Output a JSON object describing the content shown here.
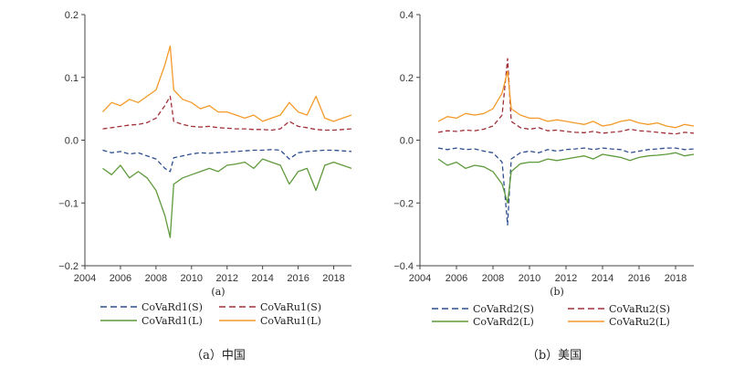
{
  "captions": {
    "left": "（a）中国",
    "right": "（b）美国"
  },
  "chart_data": [
    {
      "type": "line",
      "panel_label": "(a)",
      "xlim": [
        2004,
        2019
      ],
      "ylim": [
        -0.2,
        0.2
      ],
      "x_ticks": [
        2004,
        2006,
        2008,
        2010,
        2012,
        2014,
        2016,
        2018
      ],
      "x_tick_labels": [
        "2004",
        "2006",
        "2008",
        "2010",
        "2012",
        "2014",
        "2016",
        "2018"
      ],
      "y_ticks": [
        -0.2,
        -0.1,
        0.0,
        0.1,
        0.2
      ],
      "y_tick_labels": [
        "−0.2",
        "−0.1",
        "0.0",
        "0.1",
        "0.2"
      ],
      "legend_position": "bottom",
      "series": [
        {
          "name": "CoVaRd1(S)",
          "color": "#2f4f8f",
          "dash": true,
          "x": [
            2005,
            2005.5,
            2006,
            2006.5,
            2007,
            2007.5,
            2008,
            2008.5,
            2008.8,
            2009,
            2009.5,
            2010,
            2010.5,
            2011,
            2011.5,
            2012,
            2012.5,
            2013,
            2013.5,
            2014,
            2014.5,
            2015,
            2015.5,
            2016,
            2016.5,
            2017,
            2017.5,
            2018,
            2018.5,
            2019
          ],
          "y": [
            -0.016,
            -0.02,
            -0.018,
            -0.022,
            -0.02,
            -0.025,
            -0.03,
            -0.045,
            -0.05,
            -0.028,
            -0.025,
            -0.022,
            -0.02,
            -0.021,
            -0.02,
            -0.019,
            -0.018,
            -0.017,
            -0.016,
            -0.016,
            -0.015,
            -0.016,
            -0.03,
            -0.02,
            -0.018,
            -0.017,
            -0.016,
            -0.016,
            -0.017,
            -0.018
          ]
        },
        {
          "name": "CoVaRu1(S)",
          "color": "#a0303a",
          "dash": true,
          "x": [
            2005,
            2005.5,
            2006,
            2006.5,
            2007,
            2007.5,
            2008,
            2008.5,
            2008.8,
            2009,
            2009.5,
            2010,
            2010.5,
            2011,
            2011.5,
            2012,
            2012.5,
            2013,
            2013.5,
            2014,
            2014.5,
            2015,
            2015.5,
            2016,
            2016.5,
            2017,
            2017.5,
            2018,
            2018.5,
            2019
          ],
          "y": [
            0.018,
            0.02,
            0.022,
            0.024,
            0.025,
            0.028,
            0.035,
            0.055,
            0.07,
            0.03,
            0.025,
            0.022,
            0.021,
            0.022,
            0.02,
            0.019,
            0.018,
            0.018,
            0.017,
            0.017,
            0.016,
            0.018,
            0.03,
            0.022,
            0.02,
            0.017,
            0.016,
            0.016,
            0.017,
            0.018
          ]
        },
        {
          "name": "CoVaRd1(L)",
          "color": "#5f9a3c",
          "dash": false,
          "x": [
            2005,
            2005.5,
            2006,
            2006.5,
            2007,
            2007.5,
            2008,
            2008.5,
            2008.8,
            2009,
            2009.5,
            2010,
            2010.5,
            2011,
            2011.5,
            2012,
            2012.5,
            2013,
            2013.5,
            2014,
            2014.5,
            2015,
            2015.5,
            2016,
            2016.5,
            2017,
            2017.5,
            2018,
            2018.5,
            2019
          ],
          "y": [
            -0.045,
            -0.055,
            -0.04,
            -0.06,
            -0.05,
            -0.06,
            -0.08,
            -0.12,
            -0.155,
            -0.07,
            -0.06,
            -0.055,
            -0.05,
            -0.045,
            -0.05,
            -0.04,
            -0.038,
            -0.035,
            -0.045,
            -0.03,
            -0.035,
            -0.04,
            -0.07,
            -0.05,
            -0.045,
            -0.08,
            -0.04,
            -0.035,
            -0.04,
            -0.045
          ]
        },
        {
          "name": "CoVaRu1(L)",
          "color": "#f39a2a",
          "dash": false,
          "x": [
            2005,
            2005.5,
            2006,
            2006.5,
            2007,
            2007.5,
            2008,
            2008.5,
            2008.8,
            2009,
            2009.5,
            2010,
            2010.5,
            2011,
            2011.5,
            2012,
            2012.5,
            2013,
            2013.5,
            2014,
            2014.5,
            2015,
            2015.5,
            2016,
            2016.5,
            2017,
            2017.5,
            2018,
            2018.5,
            2019
          ],
          "y": [
            0.045,
            0.06,
            0.055,
            0.065,
            0.06,
            0.07,
            0.08,
            0.12,
            0.15,
            0.08,
            0.065,
            0.06,
            0.05,
            0.055,
            0.045,
            0.045,
            0.04,
            0.035,
            0.04,
            0.03,
            0.035,
            0.04,
            0.06,
            0.045,
            0.04,
            0.07,
            0.035,
            0.03,
            0.035,
            0.04
          ]
        }
      ]
    },
    {
      "type": "line",
      "panel_label": "(b)",
      "xlim": [
        2004,
        2019
      ],
      "ylim": [
        -0.4,
        0.4
      ],
      "x_ticks": [
        2004,
        2006,
        2008,
        2010,
        2012,
        2014,
        2016,
        2018
      ],
      "x_tick_labels": [
        "2004",
        "2006",
        "2008",
        "2010",
        "2012",
        "2014",
        "2016",
        "2018"
      ],
      "y_ticks": [
        -0.4,
        -0.2,
        0.0,
        0.2,
        0.4
      ],
      "y_tick_labels": [
        "−0.4",
        "−0.2",
        "0.0",
        "0.2",
        "0.4"
      ],
      "legend_position": "bottom",
      "series": [
        {
          "name": "CoVaRd2(S)",
          "color": "#2f4f8f",
          "dash": true,
          "x": [
            2005,
            2005.5,
            2006,
            2006.5,
            2007,
            2007.5,
            2008,
            2008.5,
            2008.8,
            2009,
            2009.5,
            2010,
            2010.5,
            2011,
            2011.5,
            2012,
            2012.5,
            2013,
            2013.5,
            2014,
            2014.5,
            2015,
            2015.5,
            2016,
            2016.5,
            2017,
            2017.5,
            2018,
            2018.5,
            2019
          ],
          "y": [
            -0.025,
            -0.03,
            -0.025,
            -0.03,
            -0.028,
            -0.035,
            -0.04,
            -0.07,
            -0.27,
            -0.06,
            -0.04,
            -0.035,
            -0.04,
            -0.03,
            -0.035,
            -0.03,
            -0.028,
            -0.025,
            -0.03,
            -0.025,
            -0.028,
            -0.03,
            -0.04,
            -0.035,
            -0.03,
            -0.028,
            -0.025,
            -0.025,
            -0.03,
            -0.028
          ]
        },
        {
          "name": "CoVaRu2(S)",
          "color": "#a0303a",
          "dash": true,
          "x": [
            2005,
            2005.5,
            2006,
            2006.5,
            2007,
            2007.5,
            2008,
            2008.5,
            2008.8,
            2009,
            2009.5,
            2010,
            2010.5,
            2011,
            2011.5,
            2012,
            2012.5,
            2013,
            2013.5,
            2014,
            2014.5,
            2015,
            2015.5,
            2016,
            2016.5,
            2017,
            2017.5,
            2018,
            2018.5,
            2019
          ],
          "y": [
            0.025,
            0.03,
            0.028,
            0.032,
            0.03,
            0.035,
            0.045,
            0.08,
            0.26,
            0.06,
            0.04,
            0.035,
            0.04,
            0.03,
            0.032,
            0.028,
            0.025,
            0.024,
            0.028,
            0.022,
            0.025,
            0.028,
            0.035,
            0.03,
            0.028,
            0.025,
            0.022,
            0.02,
            0.025,
            0.022
          ]
        },
        {
          "name": "CoVaRd2(L)",
          "color": "#5f9a3c",
          "dash": false,
          "x": [
            2005,
            2005.5,
            2006,
            2006.5,
            2007,
            2007.5,
            2008,
            2008.5,
            2008.8,
            2009,
            2009.5,
            2010,
            2010.5,
            2011,
            2011.5,
            2012,
            2012.5,
            2013,
            2013.5,
            2014,
            2014.5,
            2015,
            2015.5,
            2016,
            2016.5,
            2017,
            2017.5,
            2018,
            2018.5,
            2019
          ],
          "y": [
            -0.06,
            -0.08,
            -0.07,
            -0.09,
            -0.08,
            -0.085,
            -0.1,
            -0.14,
            -0.2,
            -0.1,
            -0.075,
            -0.07,
            -0.07,
            -0.06,
            -0.065,
            -0.06,
            -0.055,
            -0.05,
            -0.06,
            -0.045,
            -0.05,
            -0.055,
            -0.065,
            -0.055,
            -0.05,
            -0.048,
            -0.045,
            -0.04,
            -0.05,
            -0.045
          ]
        },
        {
          "name": "CoVaRu2(L)",
          "color": "#f39a2a",
          "dash": false,
          "x": [
            2005,
            2005.5,
            2006,
            2006.5,
            2007,
            2007.5,
            2008,
            2008.5,
            2008.8,
            2009,
            2009.5,
            2010,
            2010.5,
            2011,
            2011.5,
            2012,
            2012.5,
            2013,
            2013.5,
            2014,
            2014.5,
            2015,
            2015.5,
            2016,
            2016.5,
            2017,
            2017.5,
            2018,
            2018.5,
            2019
          ],
          "y": [
            0.06,
            0.075,
            0.07,
            0.085,
            0.08,
            0.085,
            0.1,
            0.15,
            0.22,
            0.1,
            0.08,
            0.07,
            0.07,
            0.06,
            0.065,
            0.06,
            0.055,
            0.05,
            0.06,
            0.045,
            0.05,
            0.06,
            0.065,
            0.055,
            0.05,
            0.055,
            0.045,
            0.04,
            0.05,
            0.045
          ]
        }
      ]
    }
  ]
}
